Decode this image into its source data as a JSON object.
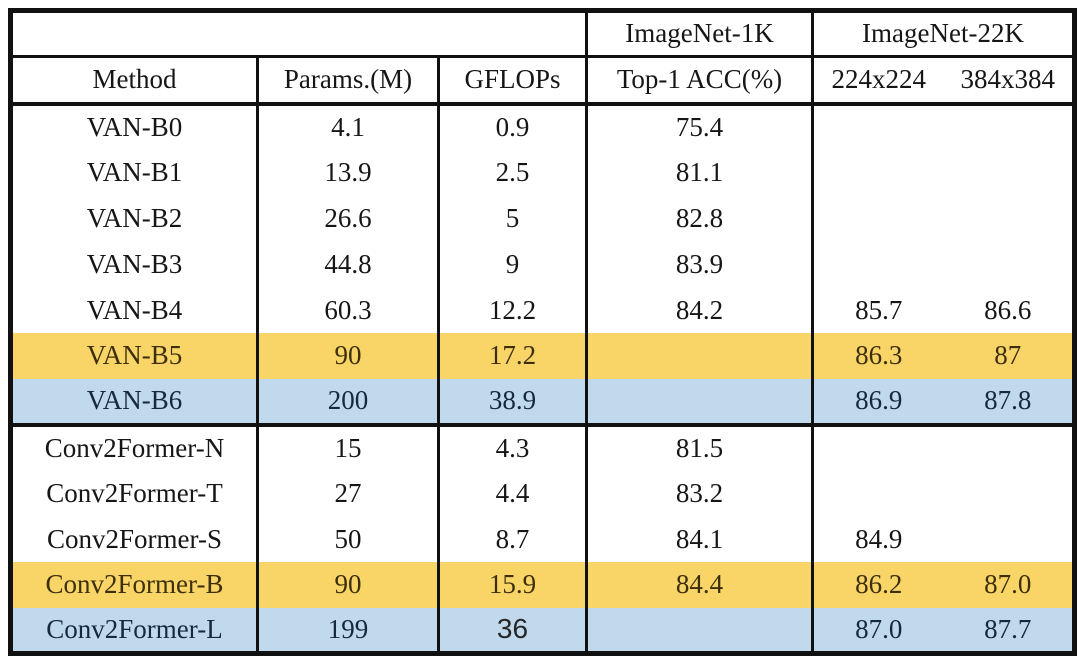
{
  "table": {
    "span_headers": {
      "left_blank": "",
      "imagenet1k": "ImageNet-1K",
      "imagenet22k": "ImageNet-22K"
    },
    "column_headers": {
      "method": "Method",
      "params": "Params.(M)",
      "gflops": "GFLOPs",
      "top1": "Top-1 ACC(%)",
      "res224": "224x224",
      "res384": "384x384"
    },
    "rows": [
      {
        "method": "VAN-B0",
        "params": "4.1",
        "gflops": "0.9",
        "top1": "75.4",
        "acc224": "",
        "acc384": "",
        "highlight": "none"
      },
      {
        "method": "VAN-B1",
        "params": "13.9",
        "gflops": "2.5",
        "top1": "81.1",
        "acc224": "",
        "acc384": "",
        "highlight": "none"
      },
      {
        "method": "VAN-B2",
        "params": "26.6",
        "gflops": "5",
        "top1": "82.8",
        "acc224": "",
        "acc384": "",
        "highlight": "none"
      },
      {
        "method": "VAN-B3",
        "params": "44.8",
        "gflops": "9",
        "top1": "83.9",
        "acc224": "",
        "acc384": "",
        "highlight": "none"
      },
      {
        "method": "VAN-B4",
        "params": "60.3",
        "gflops": "12.2",
        "top1": "84.2",
        "acc224": "85.7",
        "acc384": "86.6",
        "highlight": "none"
      },
      {
        "method": "VAN-B5",
        "params": "90",
        "gflops": "17.2",
        "top1": "",
        "acc224": "86.3",
        "acc384": "87",
        "highlight": "yellow"
      },
      {
        "method": "VAN-B6",
        "params": "200",
        "gflops": "38.9",
        "top1": "",
        "acc224": "86.9",
        "acc384": "87.8",
        "highlight": "blue"
      },
      {
        "method": "Conv2Former-N",
        "params": "15",
        "gflops": "4.3",
        "top1": "81.5",
        "acc224": "",
        "acc384": "",
        "highlight": "none"
      },
      {
        "method": "Conv2Former-T",
        "params": "27",
        "gflops": "4.4",
        "top1": "83.2",
        "acc224": "",
        "acc384": "",
        "highlight": "none"
      },
      {
        "method": "Conv2Former-S",
        "params": "50",
        "gflops": "8.7",
        "top1": "84.1",
        "acc224": "84.9",
        "acc384": "",
        "highlight": "none"
      },
      {
        "method": "Conv2Former-B",
        "params": "90",
        "gflops": "15.9",
        "top1": "84.4",
        "acc224": "86.2",
        "acc384": "87.0",
        "highlight": "yellow"
      },
      {
        "method": "Conv2Former-L",
        "params": "199",
        "gflops": "36",
        "top1": "",
        "acc224": "87.0",
        "acc384": "87.7",
        "highlight": "blue"
      }
    ]
  },
  "colors": {
    "highlight_yellow": "#F8D566",
    "highlight_blue": "#C1D9EC",
    "border_black": "#111111",
    "background": "#FFFFFF"
  },
  "chart_data": {
    "type": "table",
    "columns": [
      "Method",
      "Params.(M)",
      "GFLOPs",
      "ImageNet-1K Top-1 ACC(%)",
      "ImageNet-22K 224x224",
      "ImageNet-22K 384x384"
    ],
    "rows": [
      [
        "VAN-B0",
        4.1,
        0.9,
        75.4,
        null,
        null
      ],
      [
        "VAN-B1",
        13.9,
        2.5,
        81.1,
        null,
        null
      ],
      [
        "VAN-B2",
        26.6,
        5,
        82.8,
        null,
        null
      ],
      [
        "VAN-B3",
        44.8,
        9,
        83.9,
        null,
        null
      ],
      [
        "VAN-B4",
        60.3,
        12.2,
        84.2,
        85.7,
        86.6
      ],
      [
        "VAN-B5",
        90,
        17.2,
        null,
        86.3,
        87
      ],
      [
        "VAN-B6",
        200,
        38.9,
        null,
        86.9,
        87.8
      ],
      [
        "Conv2Former-N",
        15,
        4.3,
        81.5,
        null,
        null
      ],
      [
        "Conv2Former-T",
        27,
        4.4,
        83.2,
        null,
        null
      ],
      [
        "Conv2Former-S",
        50,
        8.7,
        84.1,
        84.9,
        null
      ],
      [
        "Conv2Former-B",
        90,
        15.9,
        84.4,
        86.2,
        87.0
      ],
      [
        "Conv2Former-L",
        199,
        36,
        null,
        87.0,
        87.7
      ]
    ],
    "highlighted_rows": {
      "yellow": [
        "VAN-B5",
        "Conv2Former-B"
      ],
      "blue": [
        "VAN-B6",
        "Conv2Former-L"
      ]
    },
    "layout_hints": {
      "group_separator_after_row": "VAN-B6",
      "merged_header_cells": [
        "blank over Method/Params/GFLOPs",
        "ImageNet-22K over 224x224 and 384x384"
      ],
      "grid": "black ruled table, no horizontal lines between data rows"
    }
  }
}
